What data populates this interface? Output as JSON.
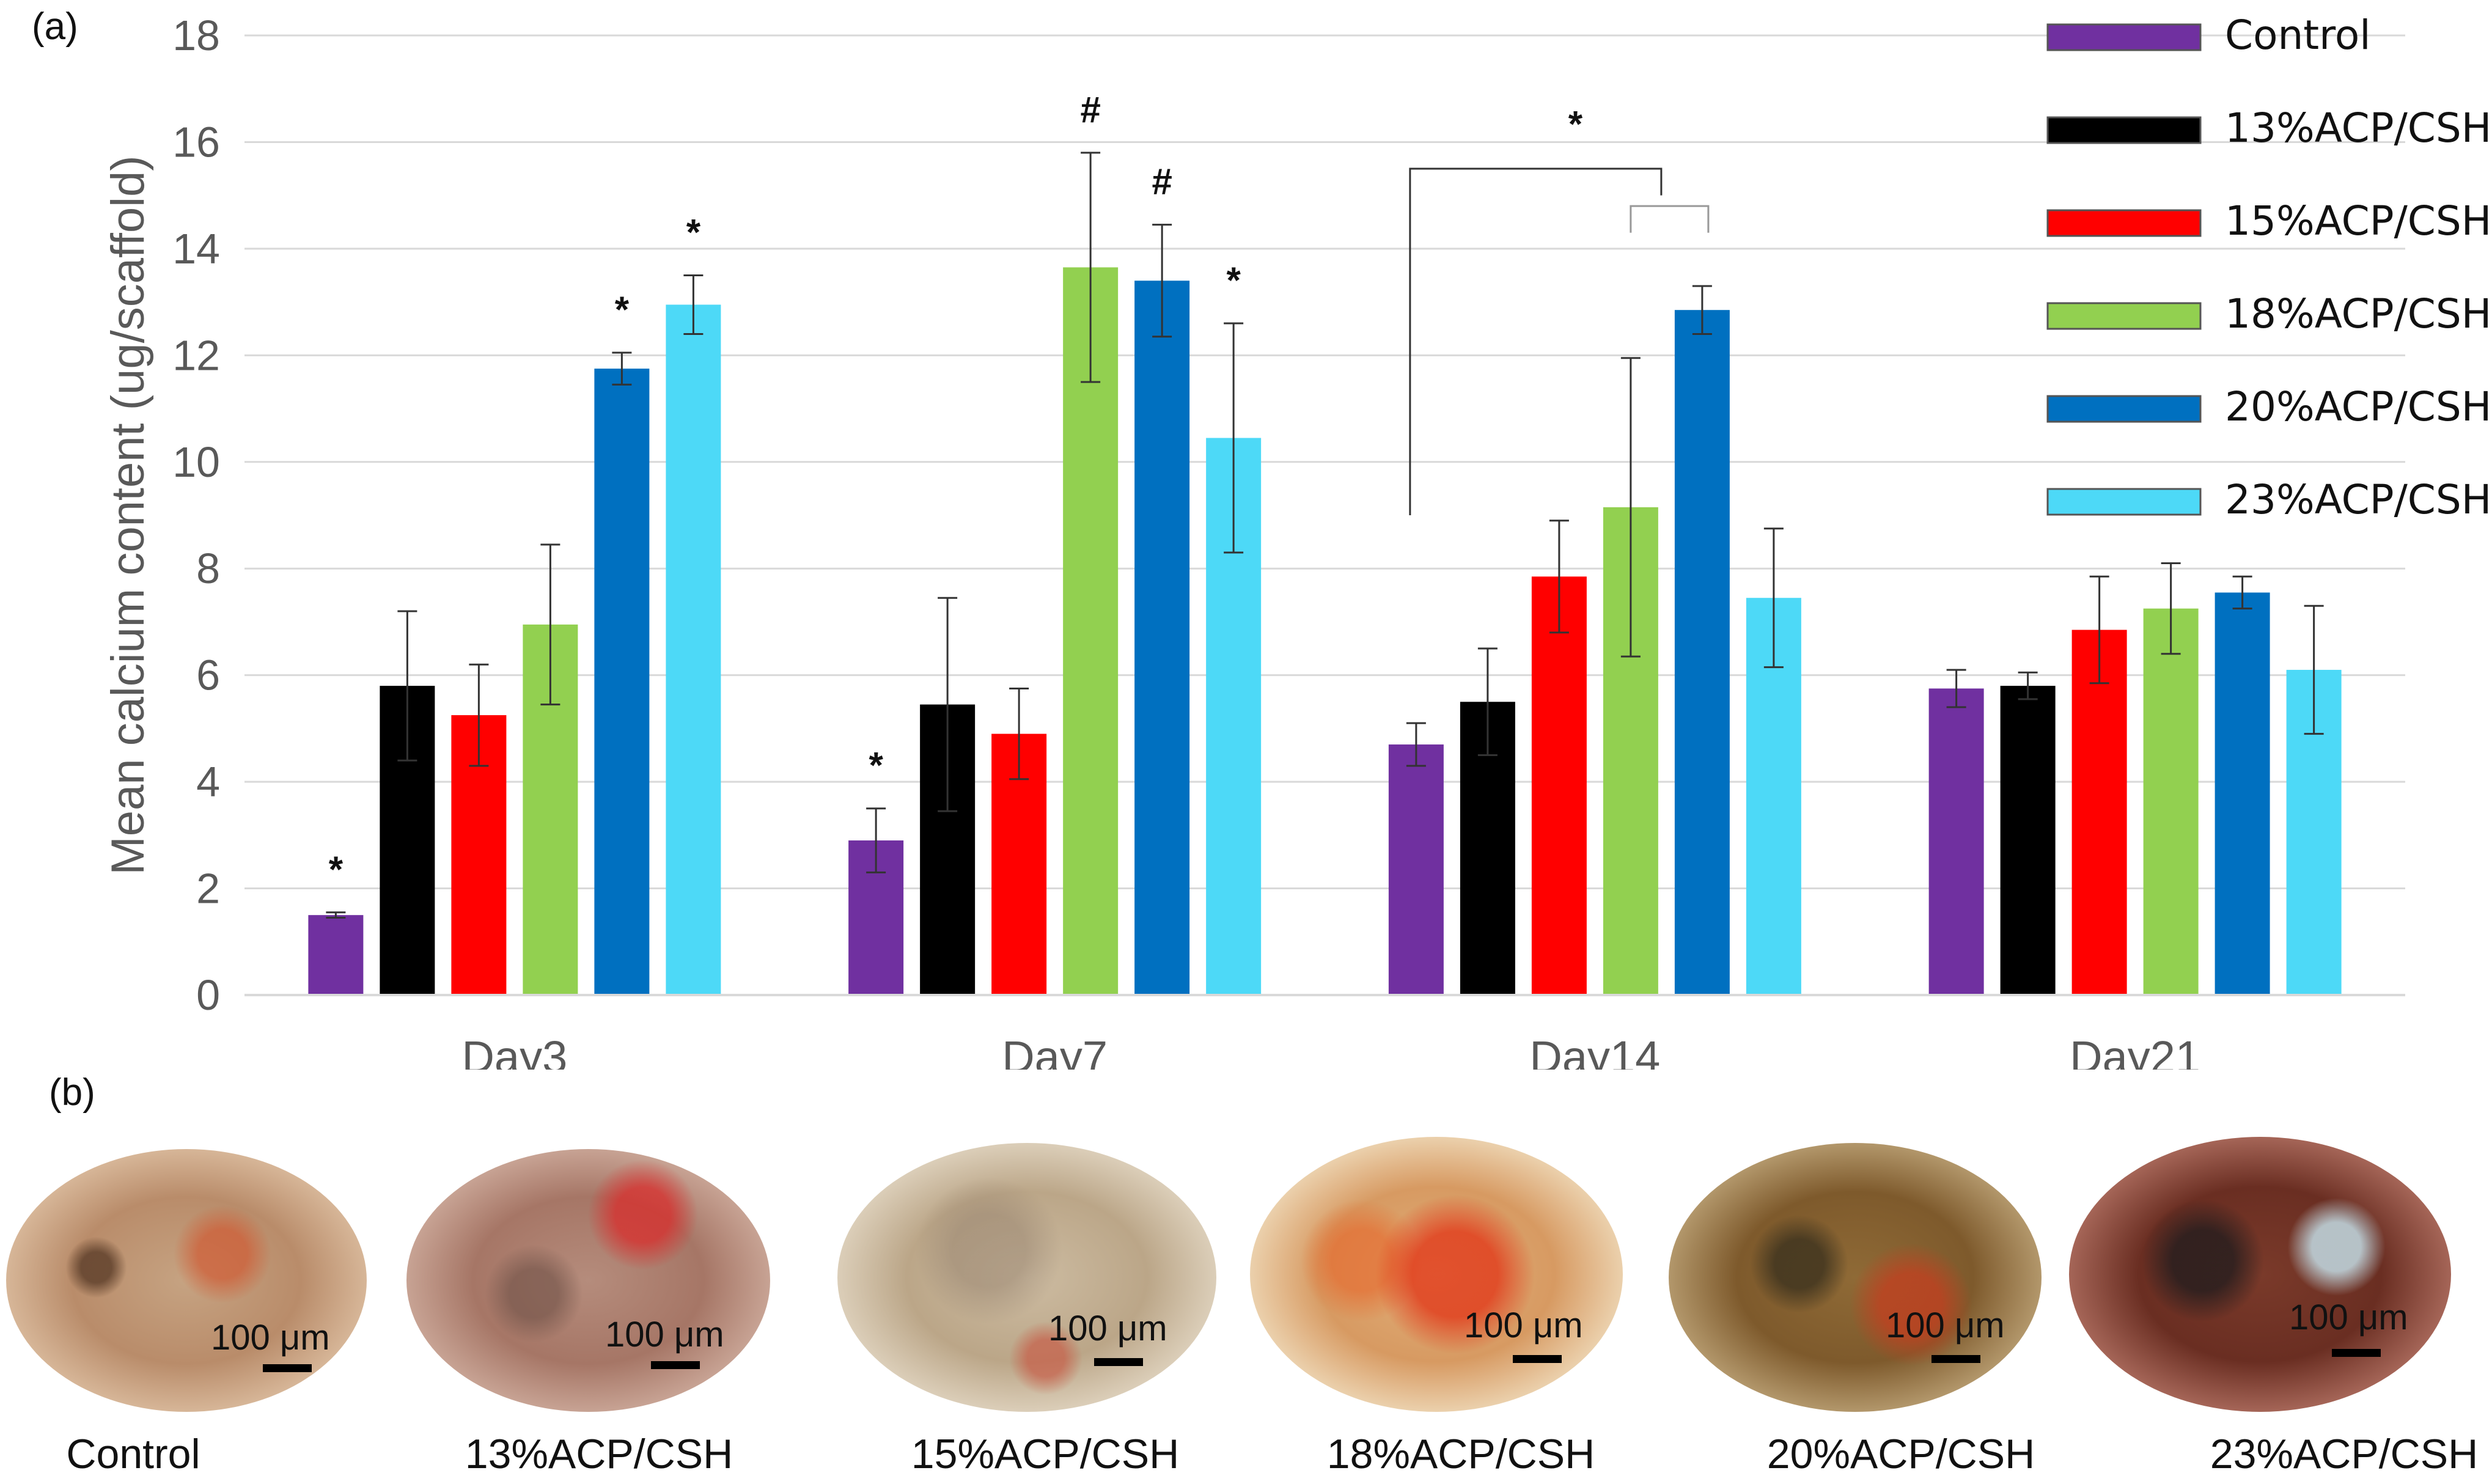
{
  "figure": {
    "panel_a_label": "(a)",
    "panel_b_label": "(b)"
  },
  "chart_data": {
    "type": "bar",
    "title": "",
    "xlabel": "",
    "ylabel": "Mean calcium content (ug/scaffold)",
    "ylim": [
      0,
      18
    ],
    "yticks": [
      0,
      2,
      4,
      6,
      8,
      10,
      12,
      14,
      16,
      18
    ],
    "grid": true,
    "legend_position": "top-right",
    "categories": [
      "Day3",
      "Day7",
      "Day14",
      "Day21"
    ],
    "series": [
      {
        "name": "Control",
        "color": "#7030A0",
        "values": [
          1.5,
          2.9,
          4.7,
          5.75
        ],
        "errors": [
          0.05,
          0.6,
          0.4,
          0.35
        ]
      },
      {
        "name": "13%ACP/CSH",
        "color": "#000000",
        "values": [
          5.8,
          5.45,
          5.5,
          5.8
        ],
        "errors": [
          1.4,
          2.0,
          1.0,
          0.25
        ]
      },
      {
        "name": "15%ACP/CSH",
        "color": "#FF0000",
        "values": [
          5.25,
          4.9,
          7.85,
          6.85
        ],
        "errors": [
          0.95,
          0.85,
          1.05,
          1.0
        ]
      },
      {
        "name": "18%ACP/CSH",
        "color": "#92D050",
        "values": [
          6.95,
          13.65,
          9.15,
          7.25
        ],
        "errors": [
          1.5,
          2.15,
          2.8,
          0.85
        ]
      },
      {
        "name": "20%ACP/CSH",
        "color": "#0070C0",
        "values": [
          11.75,
          13.4,
          12.85,
          7.55
        ],
        "errors": [
          0.3,
          1.05,
          0.45,
          0.3
        ]
      },
      {
        "name": "23%ACP/CSH",
        "color": "#4DD9F7",
        "values": [
          12.95,
          10.45,
          7.45,
          6.1
        ],
        "errors": [
          0.55,
          2.15,
          1.3,
          1.2
        ]
      }
    ],
    "annotations": [
      {
        "text": "*",
        "category": "Day3",
        "series": "Control"
      },
      {
        "text": "*",
        "category": "Day3",
        "series": "20%ACP/CSH"
      },
      {
        "text": "*",
        "category": "Day3",
        "series": "23%ACP/CSH"
      },
      {
        "text": "*",
        "category": "Day7",
        "series": "Control"
      },
      {
        "text": "#",
        "category": "Day7",
        "series": "18%ACP/CSH"
      },
      {
        "text": "#",
        "category": "Day7",
        "series": "20%ACP/CSH"
      },
      {
        "text": "*",
        "category": "Day7",
        "series": "23%ACP/CSH"
      },
      {
        "text": "*",
        "category": "Day14",
        "series": "bracket"
      }
    ]
  },
  "micrographs": {
    "scale_label": "100 μm",
    "samples": [
      {
        "caption": "Control"
      },
      {
        "caption": "13%ACP/CSH"
      },
      {
        "caption": "15%ACP/CSH"
      },
      {
        "caption": "18%ACP/CSH"
      },
      {
        "caption": "20%ACP/CSH"
      },
      {
        "caption": "23%ACP/CSH"
      }
    ]
  }
}
